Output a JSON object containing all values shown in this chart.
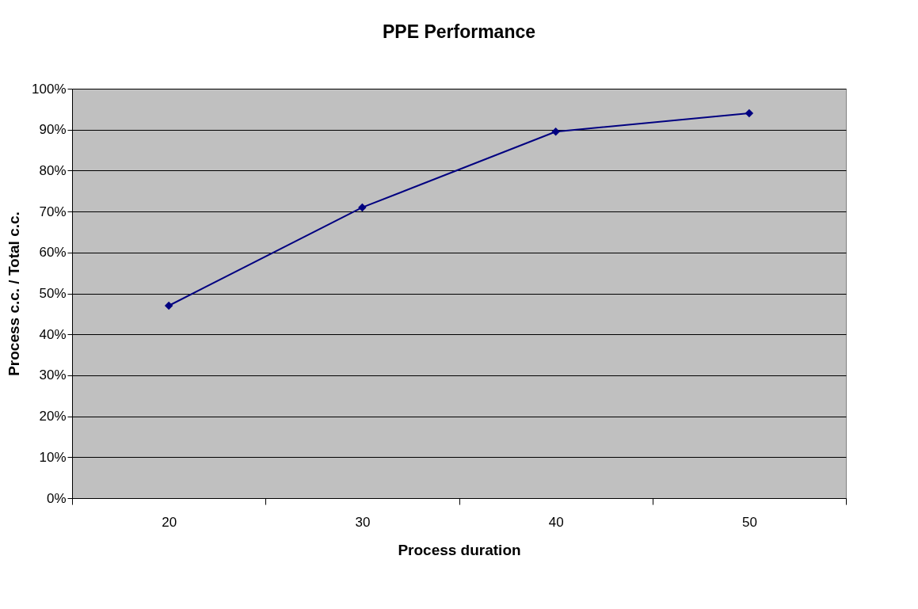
{
  "chart_data": {
    "type": "line",
    "title": "PPE Performance",
    "xlabel": "Process duration",
    "ylabel": "Process c.c. / Total c.c.",
    "categories": [
      "20",
      "30",
      "40",
      "50"
    ],
    "series": [
      {
        "color": "#000080",
        "values": [
          47,
          71,
          89.5,
          94
        ]
      }
    ],
    "ylim": [
      0,
      100
    ],
    "yticks": [
      {
        "value": 0,
        "label": "0%"
      },
      {
        "value": 10,
        "label": "10%"
      },
      {
        "value": 20,
        "label": "20%"
      },
      {
        "value": 30,
        "label": "30%"
      },
      {
        "value": 40,
        "label": "40%"
      },
      {
        "value": 50,
        "label": "50%"
      },
      {
        "value": 60,
        "label": "60%"
      },
      {
        "value": 70,
        "label": "70%"
      },
      {
        "value": 80,
        "label": "80%"
      },
      {
        "value": 90,
        "label": "90%"
      },
      {
        "value": 100,
        "label": "100%"
      }
    ],
    "grid": "y",
    "marker": "diamond",
    "line_style": "solid"
  }
}
